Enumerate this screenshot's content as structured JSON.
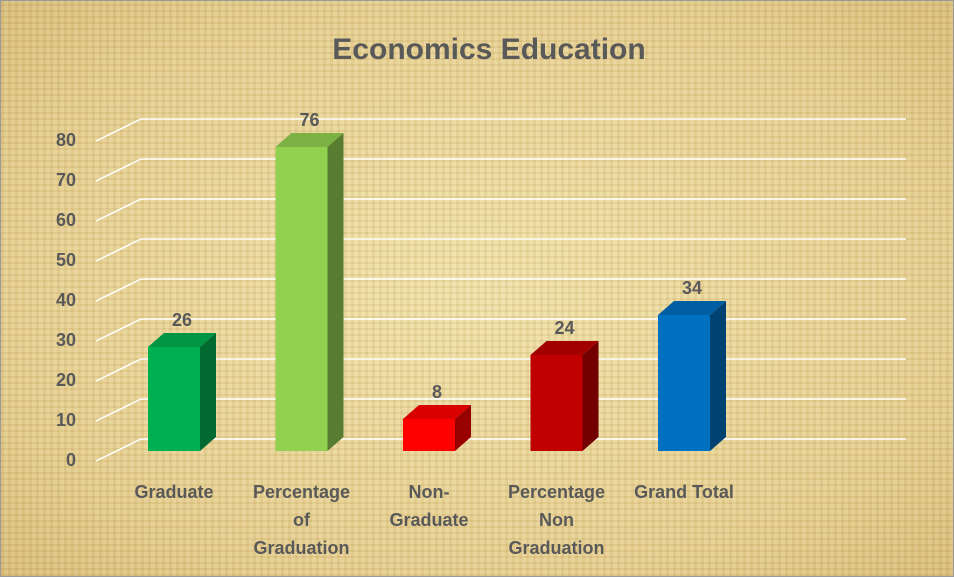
{
  "chart_data": {
    "type": "bar3d",
    "title": "Economics Education",
    "categories": [
      "Graduate",
      "Percentage of Graduation",
      "Non-Graduate",
      "Percentage Non Graduation",
      "Grand Total"
    ],
    "values": [
      26,
      76,
      8,
      24,
      34
    ],
    "colors": [
      "#00b050",
      "#92d050",
      "#ff0000",
      "#c00000",
      "#0070c0"
    ],
    "ylim": [
      0,
      80
    ],
    "yticks": [
      0,
      10,
      20,
      30,
      40,
      50,
      60,
      70,
      80
    ],
    "grid": true
  }
}
